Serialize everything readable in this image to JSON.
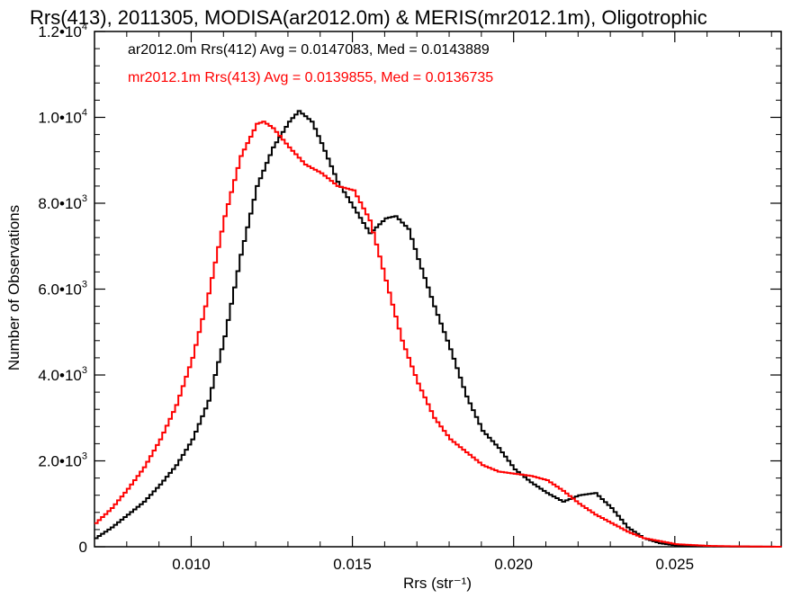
{
  "chart_data": {
    "type": "line",
    "title": "Rrs(413), 2011305, MODISA(ar2012.0m) & MERIS(mr2012.1m), Oligotrophic",
    "xlabel": "Rrs (str⁻¹)",
    "ylabel": "Number of Observations",
    "xlim": [
      0.007,
      0.0283
    ],
    "ylim": [
      0,
      12000
    ],
    "x_ticks": [
      {
        "value": 0.01,
        "label": "0.010"
      },
      {
        "value": 0.015,
        "label": "0.015"
      },
      {
        "value": 0.02,
        "label": "0.020"
      },
      {
        "value": 0.025,
        "label": "0.025"
      }
    ],
    "y_ticks": [
      {
        "value": 0,
        "mantissa": "0",
        "exponent": ""
      },
      {
        "value": 2000,
        "mantissa": "2.0•10",
        "exponent": "3"
      },
      {
        "value": 4000,
        "mantissa": "4.0•10",
        "exponent": "3"
      },
      {
        "value": 6000,
        "mantissa": "6.0•10",
        "exponent": "3"
      },
      {
        "value": 8000,
        "mantissa": "8.0•10",
        "exponent": "3"
      },
      {
        "value": 10000,
        "mantissa": "1.0•10",
        "exponent": "4"
      },
      {
        "value": 12000,
        "mantissa": "1.2•10",
        "exponent": "4"
      }
    ],
    "grid": false,
    "legend_position": "top-left",
    "series": [
      {
        "name": "ar2012.0m Rrs(412)",
        "legend_text": "ar2012.0m Rrs(412) Avg = 0.0147083, Med = 0.0143889",
        "color": "#000000",
        "x": [
          0.007,
          0.0075,
          0.008,
          0.0085,
          0.009,
          0.0095,
          0.01,
          0.0105,
          0.011,
          0.0115,
          0.012,
          0.0125,
          0.013,
          0.0133,
          0.0137,
          0.014,
          0.0145,
          0.015,
          0.0155,
          0.016,
          0.0163,
          0.0167,
          0.017,
          0.0175,
          0.018,
          0.0185,
          0.019,
          0.0195,
          0.02,
          0.0205,
          0.021,
          0.0215,
          0.022,
          0.0225,
          0.023,
          0.0235,
          0.024,
          0.0245,
          0.025,
          0.026,
          0.027,
          0.0283
        ],
        "y": [
          200,
          450,
          750,
          1050,
          1450,
          1900,
          2500,
          3400,
          4900,
          6800,
          8400,
          9300,
          9900,
          10150,
          9900,
          9400,
          8500,
          7900,
          7300,
          7650,
          7700,
          7400,
          6700,
          5600,
          4600,
          3500,
          2700,
          2300,
          1800,
          1500,
          1250,
          1050,
          1200,
          1250,
          900,
          450,
          200,
          80,
          30,
          10,
          5,
          0
        ]
      },
      {
        "name": "mr2012.1m Rrs(413)",
        "legend_text": "mr2012.1m Rrs(413) Avg = 0.0139855, Med = 0.0136735",
        "color": "#ff0000",
        "x": [
          0.007,
          0.0075,
          0.008,
          0.0085,
          0.009,
          0.0095,
          0.01,
          0.0105,
          0.011,
          0.0115,
          0.012,
          0.0122,
          0.0125,
          0.013,
          0.0135,
          0.014,
          0.0145,
          0.015,
          0.0155,
          0.016,
          0.0165,
          0.017,
          0.0175,
          0.018,
          0.0185,
          0.019,
          0.0195,
          0.02,
          0.0205,
          0.021,
          0.0215,
          0.022,
          0.0225,
          0.023,
          0.0235,
          0.024,
          0.025,
          0.026,
          0.027,
          0.0283
        ],
        "y": [
          550,
          900,
          1350,
          1850,
          2500,
          3300,
          4400,
          5900,
          7700,
          9100,
          9850,
          9900,
          9750,
          9300,
          8900,
          8700,
          8400,
          8300,
          7600,
          6200,
          4800,
          3800,
          3000,
          2500,
          2200,
          1900,
          1750,
          1700,
          1650,
          1550,
          1300,
          1000,
          750,
          550,
          350,
          200,
          60,
          20,
          8,
          0
        ]
      }
    ]
  }
}
